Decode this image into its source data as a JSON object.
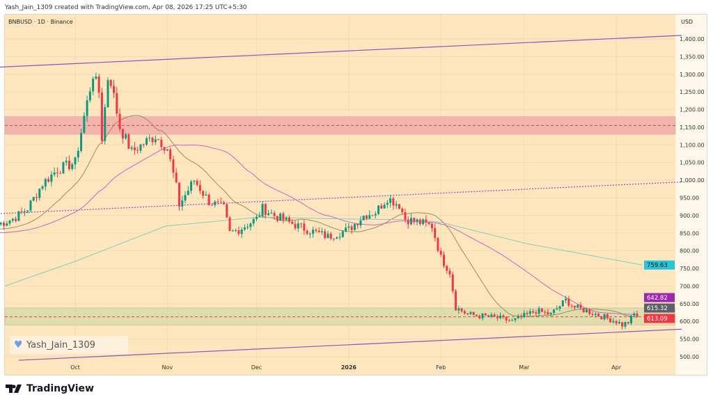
{
  "header": {
    "credit": "Yash_Jain_1309 created with TradingView.com, Apr 08, 2026 17:25 UTC+5:30",
    "symbol": "BNBUSD · 1D · Binance"
  },
  "watermark": {
    "text": "Yash_Jain_1309",
    "icon": "heart-icon"
  },
  "footer": {
    "logo": "TradingView"
  },
  "chart_data": {
    "type": "candlestick",
    "currency": "USD",
    "ylim": [
      480,
      1430
    ],
    "y_ticks": [
      500,
      550,
      600,
      650,
      700,
      750,
      800,
      850,
      900,
      950,
      1000,
      1050,
      1100,
      1150,
      1200,
      1250,
      1300,
      1350,
      1400
    ],
    "x_ticks": [
      "Oct",
      "Nov",
      "Dec",
      "2026",
      "Feb",
      "Mar",
      "Apr"
    ],
    "x_tick_dates": [
      "2025-10-01",
      "2025-11-01",
      "2025-12-01",
      "2026-01-01",
      "2026-02-01",
      "2026-03-01",
      "2026-04-01"
    ],
    "closes": [
      [
        "2025-09-05",
        875
      ],
      [
        "2025-09-10",
        890
      ],
      [
        "2025-09-15",
        920
      ],
      [
        "2025-09-20",
        990
      ],
      [
        "2025-09-25",
        1030
      ],
      [
        "2025-10-01",
        1050
      ],
      [
        "2025-10-04",
        1180
      ],
      [
        "2025-10-07",
        1300
      ],
      [
        "2025-10-09",
        1250
      ],
      [
        "2025-10-10",
        1120
      ],
      [
        "2025-10-12",
        1290
      ],
      [
        "2025-10-13",
        1280
      ],
      [
        "2025-10-16",
        1150
      ],
      [
        "2025-10-20",
        1080
      ],
      [
        "2025-10-25",
        1110
      ],
      [
        "2025-10-28",
        1125
      ],
      [
        "2025-11-01",
        1090
      ],
      [
        "2025-11-04",
        980
      ],
      [
        "2025-11-05",
        930
      ],
      [
        "2025-11-10",
        1000
      ],
      [
        "2025-11-15",
        940
      ],
      [
        "2025-11-20",
        920
      ],
      [
        "2025-11-22",
        850
      ],
      [
        "2025-11-25",
        860
      ],
      [
        "2025-12-01",
        890
      ],
      [
        "2025-12-03",
        920
      ],
      [
        "2025-12-07",
        900
      ],
      [
        "2025-12-12",
        880
      ],
      [
        "2025-12-18",
        860
      ],
      [
        "2025-12-25",
        840
      ],
      [
        "2026-01-01",
        860
      ],
      [
        "2026-01-06",
        900
      ],
      [
        "2026-01-10",
        910
      ],
      [
        "2026-01-14",
        950
      ],
      [
        "2026-01-18",
        930
      ],
      [
        "2026-01-20",
        890
      ],
      [
        "2026-01-25",
        880
      ],
      [
        "2026-01-29",
        870
      ],
      [
        "2026-02-01",
        780
      ],
      [
        "2026-02-04",
        740
      ],
      [
        "2026-02-06",
        640
      ],
      [
        "2026-02-10",
        620
      ],
      [
        "2026-02-20",
        610
      ],
      [
        "2026-02-25",
        600
      ],
      [
        "2026-03-01",
        615
      ],
      [
        "2026-03-05",
        630
      ],
      [
        "2026-03-10",
        620
      ],
      [
        "2026-03-15",
        660
      ],
      [
        "2026-03-18",
        640
      ],
      [
        "2026-03-22",
        630
      ],
      [
        "2026-03-27",
        615
      ],
      [
        "2026-04-01",
        600
      ],
      [
        "2026-04-03",
        590
      ],
      [
        "2026-04-05",
        598
      ],
      [
        "2026-04-07",
        620
      ],
      [
        "2026-04-08",
        613
      ]
    ],
    "price_labels": [
      {
        "value": "759.63",
        "color": "#26c6da"
      },
      {
        "value": "642.82",
        "color": "#9c27b0"
      },
      {
        "value": "615.32",
        "color": "#5d606b"
      },
      {
        "value": "613.09",
        "color": "#f23645"
      }
    ],
    "zones": [
      {
        "from": 1130,
        "to": 1180,
        "color": "#f0a8a8",
        "line": 1155
      },
      {
        "from": 590,
        "to": 638,
        "color": "#d6dca8",
        "line": 613
      }
    ],
    "channel": {
      "upper": [
        [
          "2025-09-05",
          1320
        ],
        [
          "2026-04-23",
          1410
        ]
      ],
      "lower": [
        [
          "2025-09-12",
          490
        ],
        [
          "2026-04-23",
          578
        ]
      ],
      "mid": [
        [
          "2025-09-05",
          905
        ],
        [
          "2026-04-23",
          995
        ]
      ]
    },
    "colors": {
      "up": "#089981",
      "down": "#f23645",
      "sma_fast": "#9e8a5a",
      "sma_slow": "#c266c9",
      "sma_long": "#80cbc4",
      "channel": "#7e57c2"
    }
  }
}
